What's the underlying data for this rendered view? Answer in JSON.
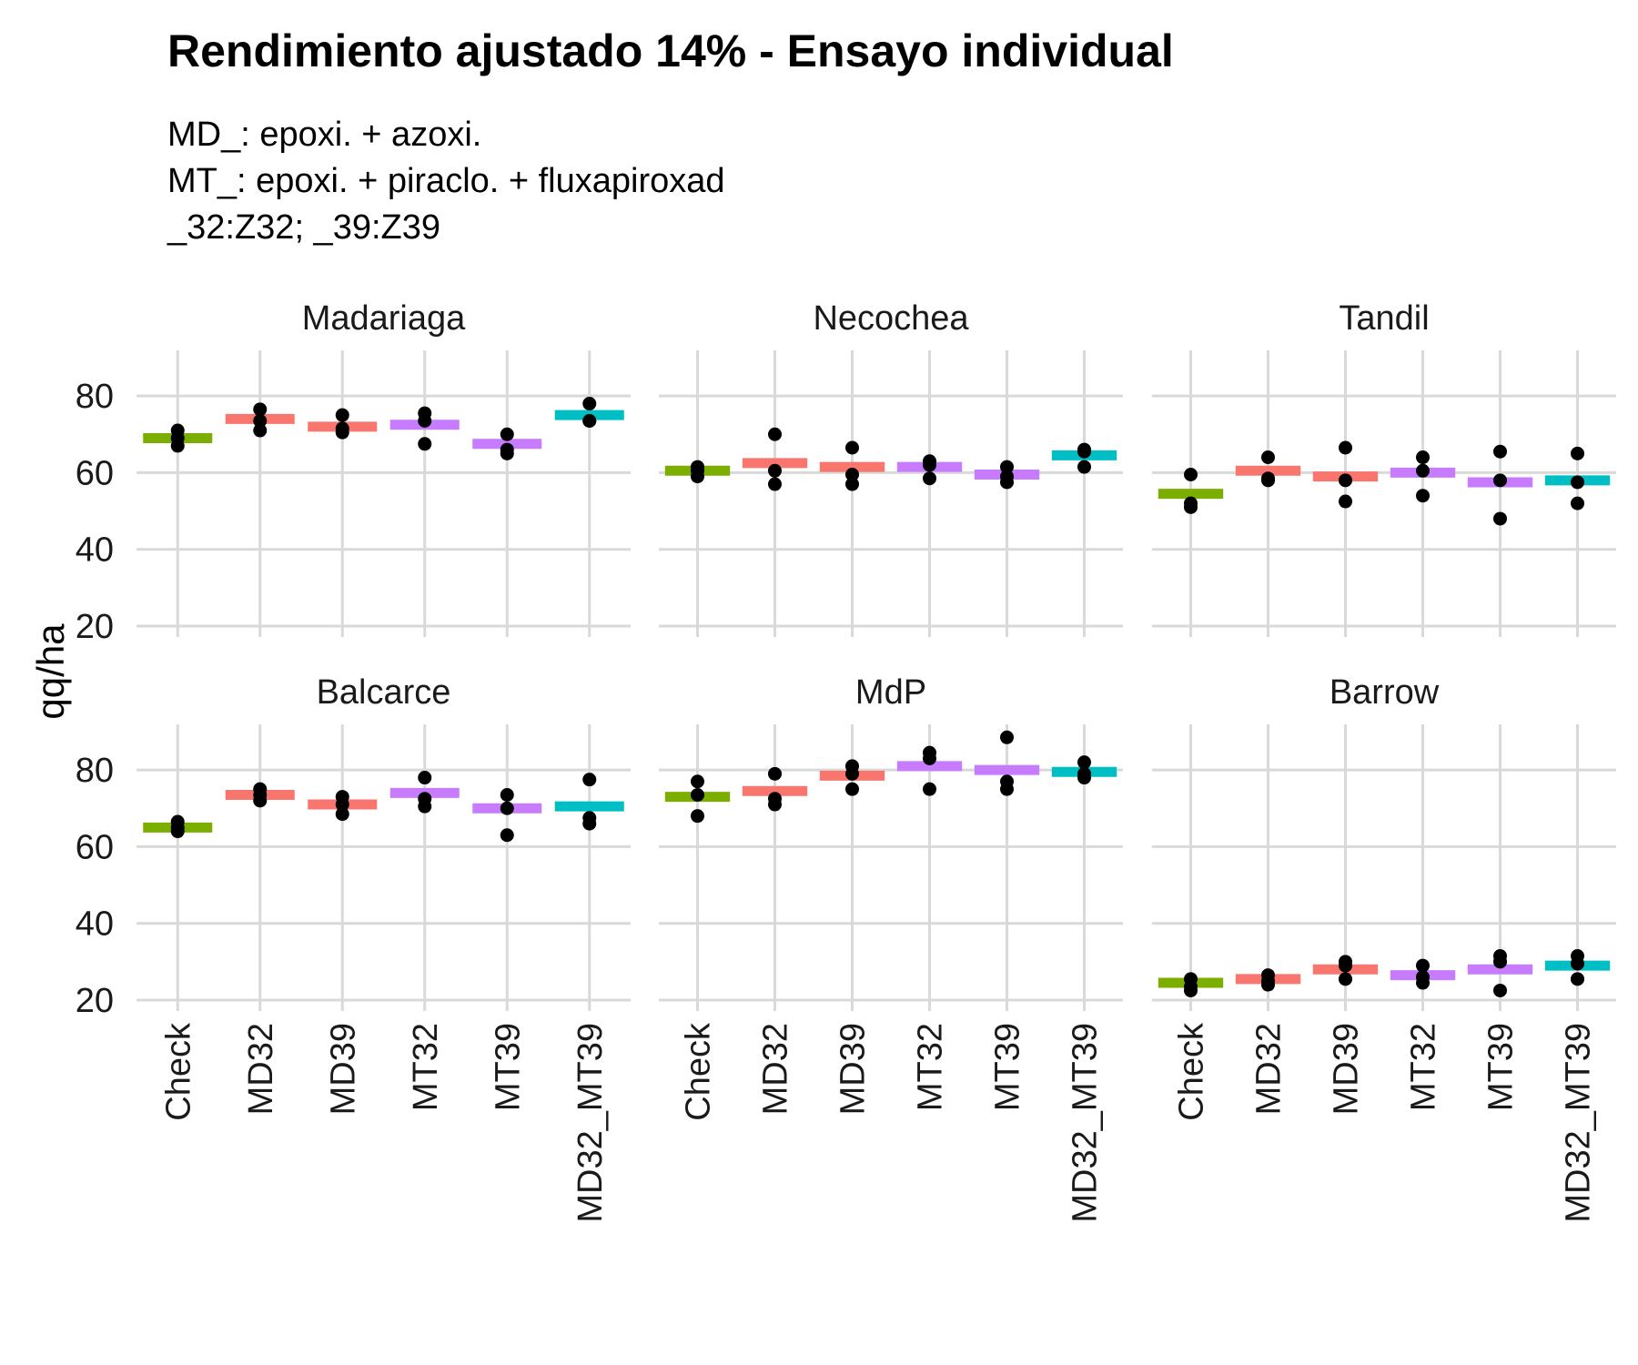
{
  "chart_data": {
    "type": "scatter",
    "title": "Rendimiento ajustado 14% - Ensayo individual",
    "subtitle": [
      "MD_: epoxi. + azoxi.",
      "MT_: epoxi. + piraclo. + fluxapiroxad",
      "_32:Z32; _39:Z39"
    ],
    "ylabel": "qq/ha",
    "xlabel": "",
    "ylim": [
      20,
      90
    ],
    "yticks": [
      20,
      40,
      60,
      80
    ],
    "grid": true,
    "legend": "none",
    "categories": [
      "Check",
      "MD32",
      "MD39",
      "MT32",
      "MT39",
      "MD32_MT39"
    ],
    "category_colors": {
      "Check": "#7CAE00",
      "MD32": "#F8766D",
      "MD39": "#F8766D",
      "MT32": "#C77CFF",
      "MT39": "#C77CFF",
      "MD32_MT39": "#00BFC4"
    },
    "point_color": "#000000",
    "panels": [
      {
        "name": "Madariaga",
        "means": [
          69,
          74,
          72,
          72.5,
          67.5,
          75
        ],
        "points": [
          [
            71,
            69,
            67
          ],
          [
            76.5,
            73.5,
            71
          ],
          [
            75,
            70.5,
            71.5
          ],
          [
            75.5,
            73.5,
            67.5
          ],
          [
            70,
            66,
            65
          ],
          [
            78,
            73.5,
            73.5
          ]
        ]
      },
      {
        "name": "Necochea",
        "means": [
          60.5,
          62.5,
          61.5,
          61.5,
          59.5,
          64.5
        ],
        "points": [
          [
            61.5,
            59,
            60.5
          ],
          [
            70,
            60.5,
            57
          ],
          [
            66.5,
            59.5,
            57
          ],
          [
            63,
            58.5,
            62
          ],
          [
            61.5,
            57.5,
            59
          ],
          [
            66,
            61.5,
            65.5
          ]
        ]
      },
      {
        "name": "Tandil",
        "means": [
          54.5,
          60.5,
          59,
          60,
          57.5,
          58
        ],
        "points": [
          [
            59.5,
            52,
            51
          ],
          [
            64,
            58,
            58.5
          ],
          [
            66.5,
            58,
            52.5
          ],
          [
            64,
            60.5,
            54
          ],
          [
            65.5,
            58,
            48
          ],
          [
            65,
            57.5,
            52
          ]
        ]
      },
      {
        "name": "Balcarce",
        "means": [
          65,
          73.5,
          71,
          74,
          70,
          70.5
        ],
        "points": [
          [
            66.5,
            64,
            65
          ],
          [
            75,
            72,
            73.5
          ],
          [
            73,
            68.5,
            71
          ],
          [
            78,
            72.5,
            70.5
          ],
          [
            73.5,
            63,
            70
          ],
          [
            77.5,
            67.5,
            66
          ]
        ]
      },
      {
        "name": "MdP",
        "means": [
          73,
          74.5,
          78.5,
          81,
          80,
          79.5
        ],
        "points": [
          [
            77,
            68,
            73.5
          ],
          [
            79,
            72.5,
            71
          ],
          [
            81,
            75,
            79
          ],
          [
            84.5,
            75,
            83
          ],
          [
            88.5,
            75,
            77
          ],
          [
            82,
            78,
            79
          ]
        ]
      },
      {
        "name": "Barrow",
        "means": [
          24.5,
          25.5,
          28,
          26.5,
          28,
          29
        ],
        "points": [
          [
            25.5,
            22.5,
            23.5
          ],
          [
            26.5,
            24,
            25
          ],
          [
            30,
            25.5,
            29
          ],
          [
            29,
            24.5,
            26
          ],
          [
            31.5,
            22.5,
            30
          ],
          [
            31.5,
            25.5,
            29.5
          ]
        ]
      }
    ]
  }
}
